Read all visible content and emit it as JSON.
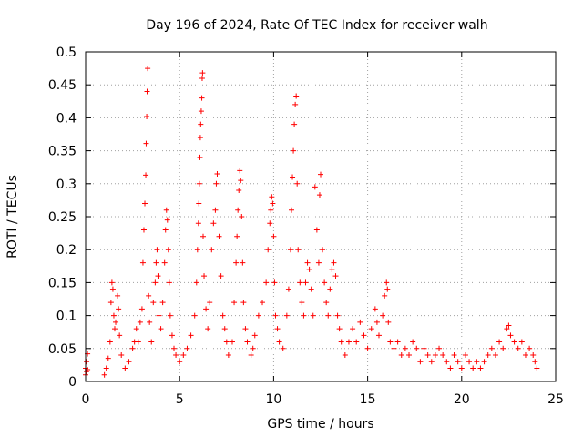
{
  "chart_data": {
    "type": "scatter",
    "title": "Day 196 of 2024, Rate Of TEC Index for receiver walh",
    "xlabel": "GPS time / hours",
    "ylabel": "ROTI / TECUs",
    "xlim": [
      0,
      25
    ],
    "ylim": [
      0,
      0.5
    ],
    "xticks": [
      0,
      5,
      10,
      15,
      20,
      25
    ],
    "xtick_labels": [
      "0",
      "5",
      "10",
      "15",
      "20",
      "25"
    ],
    "yticks": [
      0,
      0.05,
      0.1,
      0.15,
      0.2,
      0.25,
      0.3,
      0.35,
      0.4,
      0.45,
      0.5
    ],
    "ytick_labels": [
      "0",
      "0.05",
      "0.1",
      "0.15",
      "0.2",
      "0.25",
      "0.3",
      "0.35",
      "0.4",
      "0.45",
      "0.5"
    ],
    "grid": true,
    "marker": "plus",
    "color": "#ff0000",
    "series": [
      {
        "name": "ROTI",
        "points": [
          [
            0.0,
            0.01
          ],
          [
            0.0,
            0.02
          ],
          [
            0.05,
            0.015
          ],
          [
            0.05,
            0.03
          ],
          [
            0.1,
            0.042
          ],
          [
            0.1,
            0.018
          ],
          [
            1.0,
            0.01
          ],
          [
            1.1,
            0.02
          ],
          [
            1.2,
            0.035
          ],
          [
            1.3,
            0.06
          ],
          [
            1.35,
            0.12
          ],
          [
            1.4,
            0.15
          ],
          [
            1.45,
            0.14
          ],
          [
            1.5,
            0.1
          ],
          [
            1.55,
            0.08
          ],
          [
            1.6,
            0.09
          ],
          [
            1.7,
            0.13
          ],
          [
            1.75,
            0.11
          ],
          [
            1.8,
            0.07
          ],
          [
            1.9,
            0.04
          ],
          [
            2.1,
            0.02
          ],
          [
            2.3,
            0.03
          ],
          [
            2.5,
            0.05
          ],
          [
            2.6,
            0.06
          ],
          [
            2.7,
            0.08
          ],
          [
            2.8,
            0.06
          ],
          [
            2.9,
            0.09
          ],
          [
            3.0,
            0.11
          ],
          [
            3.05,
            0.18
          ],
          [
            3.1,
            0.23
          ],
          [
            3.15,
            0.27
          ],
          [
            3.2,
            0.313
          ],
          [
            3.22,
            0.361
          ],
          [
            3.25,
            0.402
          ],
          [
            3.27,
            0.44
          ],
          [
            3.3,
            0.475
          ],
          [
            3.35,
            0.13
          ],
          [
            3.4,
            0.09
          ],
          [
            3.5,
            0.06
          ],
          [
            3.6,
            0.12
          ],
          [
            3.7,
            0.15
          ],
          [
            3.75,
            0.18
          ],
          [
            3.8,
            0.2
          ],
          [
            3.85,
            0.16
          ],
          [
            3.9,
            0.1
          ],
          [
            4.0,
            0.08
          ],
          [
            4.1,
            0.12
          ],
          [
            4.2,
            0.18
          ],
          [
            4.25,
            0.23
          ],
          [
            4.3,
            0.26
          ],
          [
            4.35,
            0.245
          ],
          [
            4.4,
            0.2
          ],
          [
            4.45,
            0.15
          ],
          [
            4.5,
            0.1
          ],
          [
            4.6,
            0.07
          ],
          [
            4.7,
            0.05
          ],
          [
            4.8,
            0.04
          ],
          [
            5.0,
            0.03
          ],
          [
            5.2,
            0.04
          ],
          [
            5.4,
            0.05
          ],
          [
            5.6,
            0.07
          ],
          [
            5.8,
            0.1
          ],
          [
            5.9,
            0.15
          ],
          [
            5.95,
            0.2
          ],
          [
            6.0,
            0.24
          ],
          [
            6.02,
            0.27
          ],
          [
            6.05,
            0.3
          ],
          [
            6.08,
            0.34
          ],
          [
            6.1,
            0.37
          ],
          [
            6.12,
            0.39
          ],
          [
            6.15,
            0.41
          ],
          [
            6.18,
            0.43
          ],
          [
            6.2,
            0.46
          ],
          [
            6.22,
            0.468
          ],
          [
            6.25,
            0.22
          ],
          [
            6.3,
            0.16
          ],
          [
            6.4,
            0.11
          ],
          [
            6.5,
            0.08
          ],
          [
            6.6,
            0.12
          ],
          [
            6.7,
            0.2
          ],
          [
            6.8,
            0.24
          ],
          [
            6.9,
            0.26
          ],
          [
            6.95,
            0.3
          ],
          [
            7.0,
            0.315
          ],
          [
            7.1,
            0.22
          ],
          [
            7.2,
            0.16
          ],
          [
            7.3,
            0.1
          ],
          [
            7.4,
            0.08
          ],
          [
            7.5,
            0.06
          ],
          [
            7.6,
            0.04
          ],
          [
            7.8,
            0.06
          ],
          [
            7.9,
            0.12
          ],
          [
            8.0,
            0.18
          ],
          [
            8.05,
            0.22
          ],
          [
            8.1,
            0.26
          ],
          [
            8.15,
            0.29
          ],
          [
            8.2,
            0.32
          ],
          [
            8.25,
            0.305
          ],
          [
            8.3,
            0.25
          ],
          [
            8.35,
            0.18
          ],
          [
            8.4,
            0.12
          ],
          [
            8.5,
            0.08
          ],
          [
            8.6,
            0.06
          ],
          [
            8.8,
            0.04
          ],
          [
            8.9,
            0.05
          ],
          [
            9.0,
            0.07
          ],
          [
            9.2,
            0.1
          ],
          [
            9.4,
            0.12
          ],
          [
            9.6,
            0.15
          ],
          [
            9.7,
            0.2
          ],
          [
            9.8,
            0.24
          ],
          [
            9.85,
            0.26
          ],
          [
            9.9,
            0.28
          ],
          [
            9.95,
            0.27
          ],
          [
            10.0,
            0.22
          ],
          [
            10.05,
            0.15
          ],
          [
            10.1,
            0.1
          ],
          [
            10.2,
            0.08
          ],
          [
            10.3,
            0.06
          ],
          [
            10.5,
            0.05
          ],
          [
            10.7,
            0.1
          ],
          [
            10.8,
            0.14
          ],
          [
            10.9,
            0.2
          ],
          [
            10.95,
            0.26
          ],
          [
            11.0,
            0.31
          ],
          [
            11.05,
            0.35
          ],
          [
            11.1,
            0.39
          ],
          [
            11.15,
            0.42
          ],
          [
            11.2,
            0.433
          ],
          [
            11.25,
            0.3
          ],
          [
            11.3,
            0.2
          ],
          [
            11.4,
            0.15
          ],
          [
            11.5,
            0.12
          ],
          [
            11.6,
            0.1
          ],
          [
            11.7,
            0.15
          ],
          [
            11.8,
            0.18
          ],
          [
            11.9,
            0.17
          ],
          [
            12.0,
            0.14
          ],
          [
            12.1,
            0.1
          ],
          [
            12.2,
            0.295
          ],
          [
            12.3,
            0.23
          ],
          [
            12.4,
            0.18
          ],
          [
            12.45,
            0.283
          ],
          [
            12.5,
            0.314
          ],
          [
            12.6,
            0.2
          ],
          [
            12.7,
            0.15
          ],
          [
            12.8,
            0.12
          ],
          [
            12.9,
            0.1
          ],
          [
            13.0,
            0.14
          ],
          [
            13.1,
            0.17
          ],
          [
            13.2,
            0.18
          ],
          [
            13.3,
            0.16
          ],
          [
            13.4,
            0.1
          ],
          [
            13.5,
            0.08
          ],
          [
            13.6,
            0.06
          ],
          [
            13.8,
            0.04
          ],
          [
            14.0,
            0.06
          ],
          [
            14.2,
            0.08
          ],
          [
            14.4,
            0.06
          ],
          [
            14.6,
            0.09
          ],
          [
            14.8,
            0.07
          ],
          [
            15.0,
            0.05
          ],
          [
            15.2,
            0.08
          ],
          [
            15.4,
            0.11
          ],
          [
            15.5,
            0.09
          ],
          [
            15.6,
            0.07
          ],
          [
            15.8,
            0.1
          ],
          [
            15.9,
            0.13
          ],
          [
            16.0,
            0.15
          ],
          [
            16.05,
            0.14
          ],
          [
            16.1,
            0.09
          ],
          [
            16.2,
            0.06
          ],
          [
            16.4,
            0.05
          ],
          [
            16.6,
            0.06
          ],
          [
            16.8,
            0.04
          ],
          [
            17.0,
            0.05
          ],
          [
            17.2,
            0.04
          ],
          [
            17.4,
            0.06
          ],
          [
            17.6,
            0.05
          ],
          [
            17.8,
            0.03
          ],
          [
            18.0,
            0.05
          ],
          [
            18.2,
            0.04
          ],
          [
            18.4,
            0.03
          ],
          [
            18.6,
            0.04
          ],
          [
            18.8,
            0.05
          ],
          [
            19.0,
            0.04
          ],
          [
            19.2,
            0.03
          ],
          [
            19.4,
            0.02
          ],
          [
            19.6,
            0.04
          ],
          [
            19.8,
            0.03
          ],
          [
            20.0,
            0.02
          ],
          [
            20.2,
            0.04
          ],
          [
            20.4,
            0.03
          ],
          [
            20.6,
            0.02
          ],
          [
            20.8,
            0.03
          ],
          [
            21.0,
            0.02
          ],
          [
            21.2,
            0.03
          ],
          [
            21.4,
            0.04
          ],
          [
            21.6,
            0.05
          ],
          [
            21.8,
            0.04
          ],
          [
            22.0,
            0.06
          ],
          [
            22.2,
            0.05
          ],
          [
            22.4,
            0.08
          ],
          [
            22.5,
            0.085
          ],
          [
            22.6,
            0.07
          ],
          [
            22.8,
            0.06
          ],
          [
            23.0,
            0.05
          ],
          [
            23.2,
            0.06
          ],
          [
            23.4,
            0.04
          ],
          [
            23.6,
            0.05
          ],
          [
            23.8,
            0.04
          ],
          [
            23.9,
            0.03
          ],
          [
            24.0,
            0.02
          ]
        ]
      }
    ]
  }
}
